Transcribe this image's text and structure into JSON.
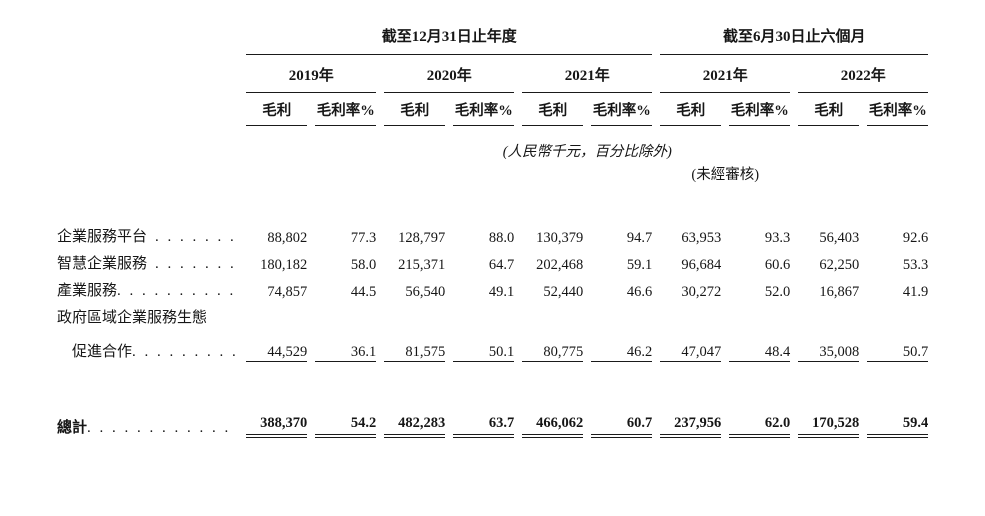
{
  "table": {
    "groups": [
      {
        "title": "截至12月31日止年度",
        "years": [
          "2019年",
          "2020年",
          "2021年"
        ]
      },
      {
        "title": "截至6月30日止六個月",
        "years": [
          "2021年",
          "2022年"
        ]
      }
    ],
    "measures": {
      "gross_profit": "毛利",
      "gross_margin": "毛利率%"
    },
    "notes": {
      "units": "(人民幣千元，百分比除外)",
      "unaudited": "(未經審核)"
    },
    "rows": [
      {
        "label": "企業服務平台",
        "leaders": ". . . . . . .",
        "values": [
          "88,802",
          "77.3",
          "128,797",
          "88.0",
          "130,379",
          "94.7",
          "63,953",
          "93.3",
          "56,403",
          "92.6"
        ]
      },
      {
        "label": "智慧企業服務",
        "leaders": ". . . . . . .",
        "values": [
          "180,182",
          "58.0",
          "215,371",
          "64.7",
          "202,468",
          "59.1",
          "96,684",
          "60.6",
          "62,250",
          "53.3"
        ]
      },
      {
        "label": "產業服務",
        "leaders": ". . . . . . . . . .",
        "values": [
          "74,857",
          "44.5",
          "56,540",
          "49.1",
          "52,440",
          "46.6",
          "30,272",
          "52.0",
          "16,867",
          "41.9"
        ]
      },
      {
        "label": "政府區域企業服務生態",
        "leaders": "",
        "values": []
      },
      {
        "label": "促進合作",
        "leaders": ". . . . . . . . .",
        "values": [
          "44,529",
          "36.1",
          "81,575",
          "50.1",
          "80,775",
          "46.2",
          "47,047",
          "48.4",
          "35,008",
          "50.7"
        ]
      }
    ],
    "total_row": {
      "label": "總計",
      "leaders": ". . . . . . . . . . . .",
      "values": [
        "388,370",
        "54.2",
        "482,283",
        "63.7",
        "466,062",
        "60.7",
        "237,956",
        "62.0",
        "170,528",
        "59.4"
      ]
    },
    "colors": {
      "text": "#161616",
      "rule": "#1a1a1a",
      "background": "#ffffff"
    }
  }
}
